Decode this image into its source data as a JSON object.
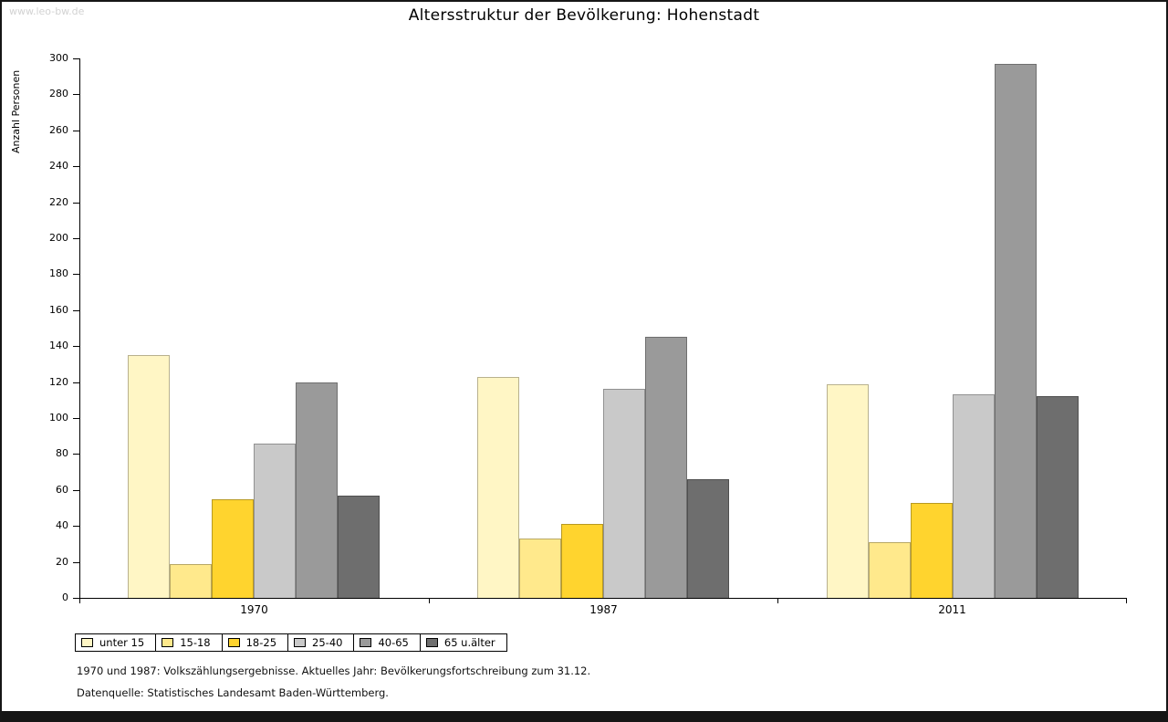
{
  "watermark": "www.leo-bw.de",
  "footnotes": [
    "1970 und 1987: Volkszählungsergebnisse. Aktuelles Jahr: Bevölkerungsfortschreibung zum 31.12.",
    "Datenquelle: Statistisches Landesamt Baden-Württemberg."
  ],
  "chart_data": {
    "type": "bar",
    "title": "Altersstruktur der Bevölkerung: Hohenstadt",
    "xlabel": "",
    "ylabel": "Anzahl Personen",
    "ylim": [
      0,
      300
    ],
    "ytick_step": 20,
    "grid": false,
    "legend_position": "bottom-left",
    "categories": [
      "1970",
      "1987",
      "2011"
    ],
    "series": [
      {
        "name": "unter 15",
        "color": "#FFF6C5",
        "values": [
          135,
          123,
          119
        ]
      },
      {
        "name": "15-18",
        "color": "#FFE98C",
        "values": [
          19,
          33,
          31
        ]
      },
      {
        "name": "18-25",
        "color": "#FFD42E",
        "values": [
          55,
          41,
          53
        ]
      },
      {
        "name": "25-40",
        "color": "#C9C9C9",
        "values": [
          86,
          116,
          113
        ]
      },
      {
        "name": "40-65",
        "color": "#9A9A9A",
        "values": [
          120,
          145,
          297
        ]
      },
      {
        "name": "65 u.älter",
        "color": "#6E6E6E",
        "values": [
          57,
          66,
          112
        ]
      }
    ]
  }
}
